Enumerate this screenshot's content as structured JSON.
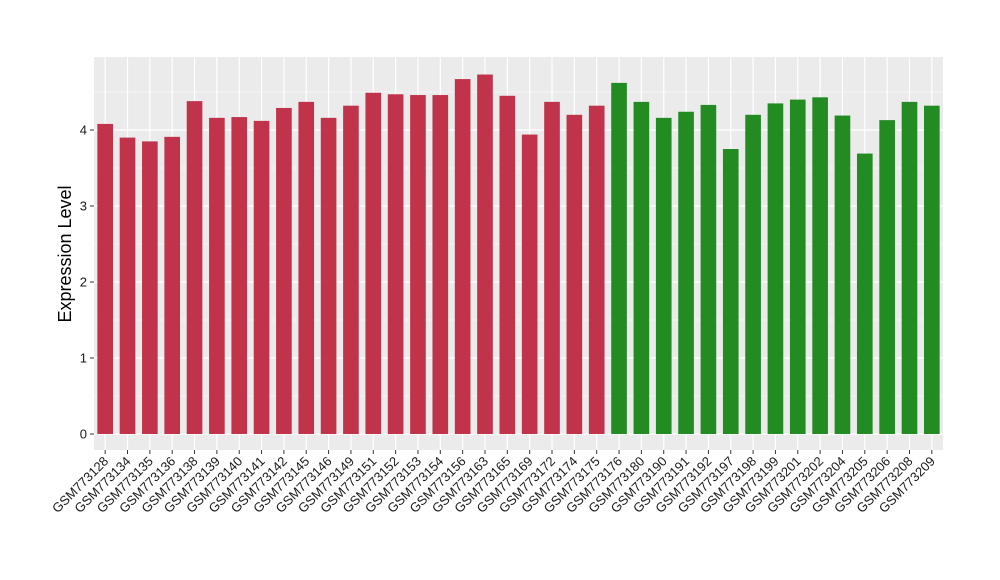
{
  "chart_data": {
    "type": "bar",
    "title": "",
    "xlabel": "",
    "ylabel": "Expression Level",
    "ylim": [
      0,
      4.95
    ],
    "yticks": [
      0,
      1,
      2,
      3,
      4
    ],
    "grid": true,
    "legend": "none",
    "categories": [
      "GSM773128",
      "GSM773134",
      "GSM773135",
      "GSM773136",
      "GSM773138",
      "GSM773139",
      "GSM773140",
      "GSM773141",
      "GSM773142",
      "GSM773145",
      "GSM773146",
      "GSM773149",
      "GSM773151",
      "GSM773152",
      "GSM773153",
      "GSM773154",
      "GSM773156",
      "GSM773163",
      "GSM773165",
      "GSM773169",
      "GSM773172",
      "GSM773174",
      "GSM773175",
      "GSM773176",
      "GSM773180",
      "GSM773190",
      "GSM773191",
      "GSM773192",
      "GSM773197",
      "GSM773198",
      "GSM773199",
      "GSM773201",
      "GSM773202",
      "GSM773204",
      "GSM773205",
      "GSM773206",
      "GSM773208",
      "GSM773209"
    ],
    "values": [
      4.08,
      3.9,
      3.85,
      3.91,
      4.38,
      4.16,
      4.17,
      4.12,
      4.29,
      4.37,
      4.16,
      4.32,
      4.49,
      4.47,
      4.46,
      4.46,
      4.67,
      4.73,
      4.45,
      3.94,
      4.37,
      4.2,
      4.32,
      4.62,
      4.37,
      4.16,
      4.24,
      4.33,
      3.75,
      4.2,
      4.35,
      4.4,
      4.43,
      4.19,
      3.69,
      4.13,
      4.37,
      4.32
    ],
    "groups": [
      0,
      0,
      0,
      0,
      0,
      0,
      0,
      0,
      0,
      0,
      0,
      0,
      0,
      0,
      0,
      0,
      0,
      0,
      0,
      0,
      0,
      0,
      0,
      1,
      1,
      1,
      1,
      1,
      1,
      1,
      1,
      1,
      1,
      1,
      1,
      1,
      1,
      1
    ],
    "colors": {
      "group_colors": [
        "#c0334b",
        "#228b22"
      ],
      "panel_bg": "#ebebeb",
      "grid_major": "#ffffff",
      "grid_minor": "#f4f4f4",
      "tick_text": "#1a1a1a"
    }
  }
}
